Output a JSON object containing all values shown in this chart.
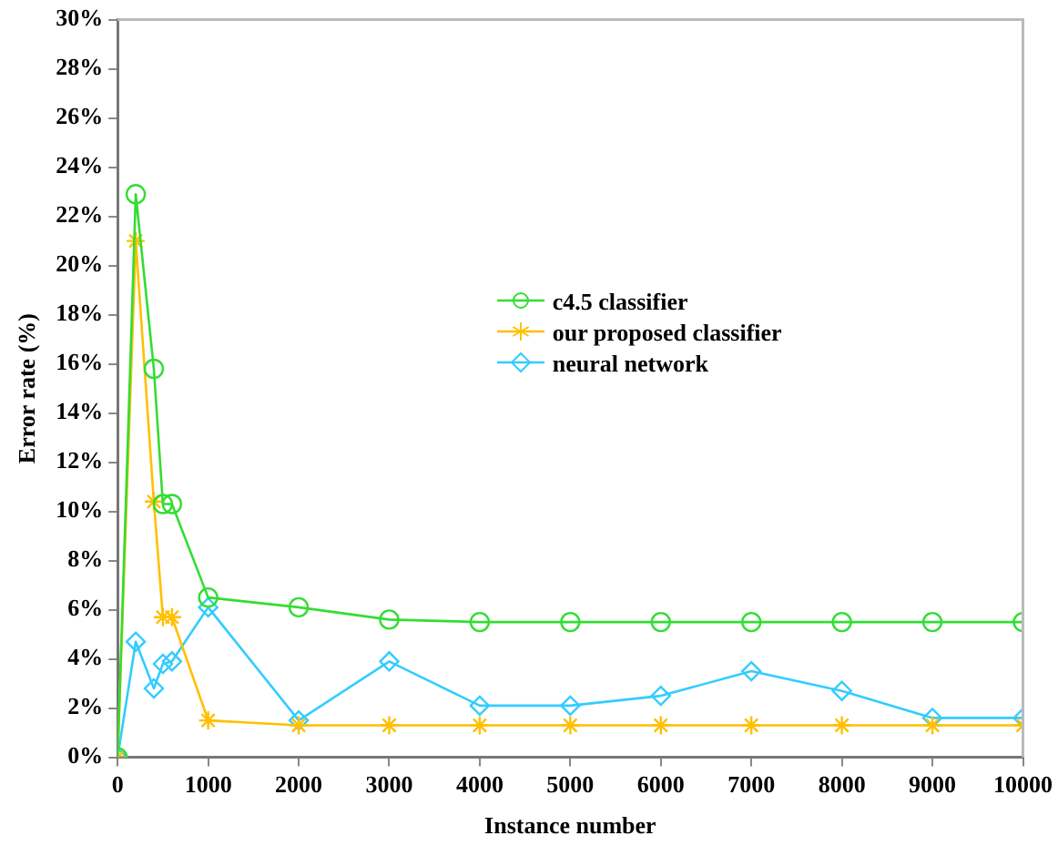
{
  "chart_data": {
    "type": "line",
    "xlabel": "Instance number",
    "ylabel": "Error rate (%)",
    "x": [
      0,
      200,
      400,
      500,
      600,
      1000,
      2000,
      3000,
      4000,
      5000,
      6000,
      7000,
      8000,
      9000,
      10000
    ],
    "xlim": [
      0,
      10000
    ],
    "xticks": [
      0,
      1000,
      2000,
      3000,
      4000,
      5000,
      6000,
      7000,
      8000,
      9000,
      10000
    ],
    "ylim": [
      0,
      30
    ],
    "yticks": [
      {
        "value": 0,
        "label": "0%"
      },
      {
        "value": 2,
        "label": "2%"
      },
      {
        "value": 4,
        "label": "4%"
      },
      {
        "value": 6,
        "label": "6%"
      },
      {
        "value": 8,
        "label": "8%"
      },
      {
        "value": 10,
        "label": "10%"
      },
      {
        "value": 12,
        "label": "12%"
      },
      {
        "value": 14,
        "label": "14%"
      },
      {
        "value": 16,
        "label": "16%"
      },
      {
        "value": 18,
        "label": "18%"
      },
      {
        "value": 20,
        "label": "20%"
      },
      {
        "value": 22,
        "label": "22%"
      },
      {
        "value": 24,
        "label": "24%"
      },
      {
        "value": 26,
        "label": "26%"
      },
      {
        "value": 28,
        "label": "28%"
      },
      {
        "value": 30,
        "label": "30%"
      }
    ],
    "grid": false,
    "legend": "right",
    "line_style": "solid",
    "series": [
      {
        "name": "c4.5 classifier",
        "color": "#33dd33",
        "marker": "circle",
        "values": [
          0,
          22.9,
          15.8,
          10.3,
          10.3,
          6.5,
          6.1,
          5.6,
          5.5,
          5.5,
          5.5,
          5.5,
          5.5,
          5.5,
          5.5
        ]
      },
      {
        "name": "our proposed classifier",
        "color": "#ffc000",
        "marker": "cross",
        "values": [
          0,
          21,
          10.4,
          5.7,
          5.7,
          1.5,
          1.3,
          1.3,
          1.3,
          1.3,
          1.3,
          1.3,
          1.3,
          1.3,
          1.3
        ]
      },
      {
        "name": "neural network",
        "color": "#33ccff",
        "marker": "diamond",
        "values": [
          0,
          4.7,
          2.8,
          3.8,
          3.9,
          6.1,
          1.5,
          3.9,
          2.1,
          2.1,
          2.5,
          3.5,
          2.7,
          1.6,
          1.6
        ]
      }
    ]
  }
}
